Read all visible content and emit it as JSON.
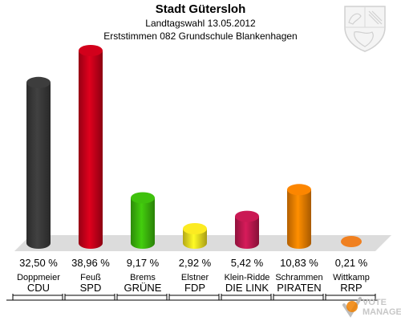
{
  "chart_data": {
    "type": "bar",
    "title": "Stadt Gütersloh",
    "subtitle": "Landtagswahl 13.05.2012",
    "subtitle2": "Erststimmen 082 Grundschule Blankenhagen",
    "series": [
      {
        "candidate": "Doppmeier",
        "party": "CDU",
        "value": 32.5,
        "label": "32,50 %",
        "color": "#3a3a3a"
      },
      {
        "candidate": "Feuß",
        "party": "SPD",
        "value": 38.96,
        "label": "38,96 %",
        "color": "#c8001a"
      },
      {
        "candidate": "Brems",
        "party": "GRÜNE",
        "value": 9.17,
        "label": "9,17 %",
        "color": "#3cb80c"
      },
      {
        "candidate": "Elstner",
        "party": "FDP",
        "value": 2.92,
        "label": "2,92 %",
        "color": "#f0e020"
      },
      {
        "candidate": "Klein-Ridde",
        "party": "DIE LINK",
        "value": 5.42,
        "label": "5,42 %",
        "color": "#c01850"
      },
      {
        "candidate": "Schrammen",
        "party": "PIRATEN",
        "value": 10.83,
        "label": "10,83 %",
        "color": "#f08000"
      },
      {
        "candidate": "Wittkamp",
        "party": "RRP",
        "value": 0.21,
        "label": "0,21 %",
        "color": "#f08020"
      }
    ]
  },
  "logo": {
    "text_top": "VOTE",
    "text_bottom": "MANAGER"
  }
}
